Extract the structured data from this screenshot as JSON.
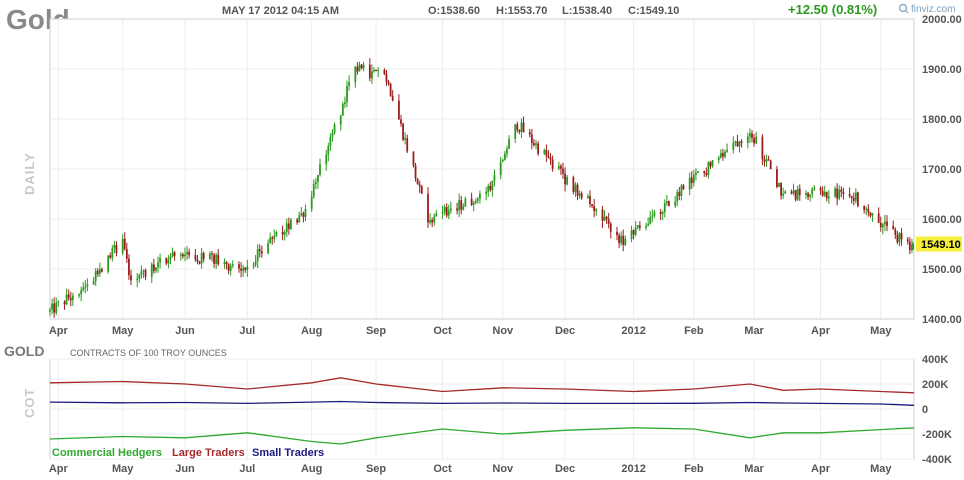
{
  "header": {
    "title": "Gold",
    "datetime": "MAY 17 2012 04:15 AM",
    "open": "O:1538.60",
    "high": "H:1553.70",
    "low": "L:1538.40",
    "close": "C:1549.10",
    "change": "+12.50 (0.81%)",
    "brand": "finviz.com"
  },
  "colors": {
    "up": "#2c9a1f",
    "down": "#9b1c1c",
    "commercial": "#2fa82f",
    "large": "#a52a2a",
    "small": "#1a1a7a",
    "last_label_bg": "#f5ee3a"
  },
  "main_chart": {
    "side_label": "DAILY",
    "last_price_label": "1549.10",
    "y_ticks": [
      "2000.00",
      "1900.00",
      "1800.00",
      "1700.00",
      "1600.00",
      "1500.00",
      "1400.00"
    ],
    "x_ticks": [
      "Apr",
      "May",
      "Jun",
      "Jul",
      "Aug",
      "Sep",
      "Oct",
      "Nov",
      "Dec",
      "2012",
      "Feb",
      "Mar",
      "Apr",
      "May"
    ]
  },
  "cot_panel": {
    "title": "GOLD",
    "subtitle": "CONTRACTS OF 100 TROY OUNCES",
    "side_label": "COT",
    "y_ticks": [
      "400K",
      "200K",
      "0",
      "-200K",
      "-400K"
    ],
    "legend": [
      "Commercial Hedgers",
      "Large Traders",
      "Small Traders"
    ],
    "x_ticks": [
      "Apr",
      "May",
      "Jun",
      "Jul",
      "Aug",
      "Sep",
      "Oct",
      "Nov",
      "Dec",
      "2012",
      "Feb",
      "Mar",
      "Apr",
      "May"
    ]
  },
  "chart_data": [
    {
      "type": "candlestick",
      "title": "Gold",
      "ylabel": "",
      "ylim": [
        1400,
        2000
      ],
      "x_range": [
        "2011-03-28",
        "2012-05-17"
      ],
      "ohlc_key_points": [
        {
          "date": "2011-03-28",
          "close": 1415
        },
        {
          "date": "2011-04-15",
          "close": 1470
        },
        {
          "date": "2011-05-02",
          "close": 1560
        },
        {
          "date": "2011-05-06",
          "close": 1480
        },
        {
          "date": "2011-06-01",
          "close": 1535
        },
        {
          "date": "2011-06-29",
          "close": 1500
        },
        {
          "date": "2011-07-29",
          "close": 1620
        },
        {
          "date": "2011-08-22",
          "close": 1900
        },
        {
          "date": "2011-09-06",
          "close": 1885
        },
        {
          "date": "2011-09-26",
          "close": 1600
        },
        {
          "date": "2011-10-24",
          "close": 1650
        },
        {
          "date": "2011-11-08",
          "close": 1790
        },
        {
          "date": "2011-12-29",
          "close": 1550
        },
        {
          "date": "2012-02-28",
          "close": 1780
        },
        {
          "date": "2012-03-15",
          "close": 1650
        },
        {
          "date": "2012-04-17",
          "close": 1650
        },
        {
          "date": "2012-05-16",
          "close": 1537
        }
      ],
      "last": {
        "date": "2012-05-17",
        "open": 1538.6,
        "high": 1553.7,
        "low": 1538.4,
        "close": 1549.1,
        "change": 12.5,
        "change_pct": 0.81
      }
    },
    {
      "type": "line",
      "title": "GOLD",
      "ylim": [
        -400000,
        400000
      ],
      "x": [
        "2011-03-28",
        "2011-05-02",
        "2011-06-01",
        "2011-07-01",
        "2011-08-01",
        "2011-08-15",
        "2011-09-01",
        "2011-10-03",
        "2011-11-01",
        "2011-12-01",
        "2012-01-03",
        "2012-02-01",
        "2012-02-28",
        "2012-03-15",
        "2012-04-02",
        "2012-05-01",
        "2012-05-17"
      ],
      "series": [
        {
          "name": "Commercial Hedgers",
          "values": [
            -240000,
            -220000,
            -230000,
            -190000,
            -260000,
            -280000,
            -230000,
            -160000,
            -200000,
            -170000,
            -150000,
            -160000,
            -230000,
            -190000,
            -190000,
            -165000,
            -150000
          ]
        },
        {
          "name": "Large Traders",
          "values": [
            210000,
            220000,
            200000,
            160000,
            210000,
            250000,
            200000,
            140000,
            170000,
            160000,
            140000,
            160000,
            200000,
            150000,
            160000,
            140000,
            130000
          ]
        },
        {
          "name": "Small Traders",
          "values": [
            55000,
            50000,
            52000,
            45000,
            55000,
            60000,
            52000,
            45000,
            48000,
            45000,
            45000,
            46000,
            52000,
            48000,
            45000,
            40000,
            30000
          ]
        }
      ]
    }
  ]
}
